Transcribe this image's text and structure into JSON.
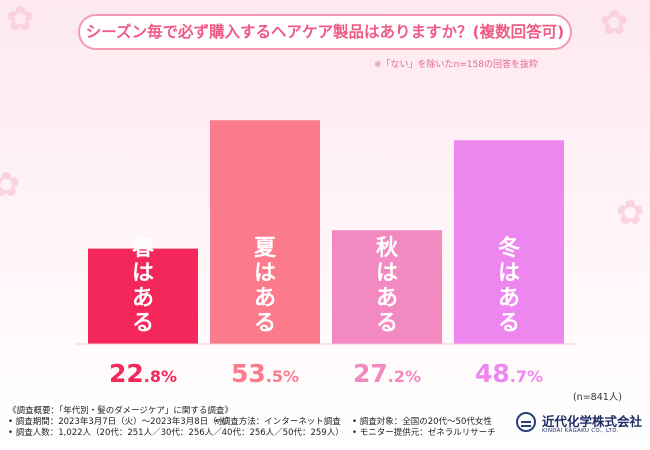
{
  "chart_data": {
    "type": "bar",
    "title": "シーズン毎で必ず購入するヘアケア製品はありますか？(複数回答可)",
    "note": "※「ない」を除いたn=158の回答を抜粋",
    "categories": [
      "春はある",
      "夏はある",
      "秋はある",
      "冬はある"
    ],
    "values": [
      22.8,
      53.5,
      27.2,
      48.7
    ],
    "value_labels": [
      "22.8%",
      "53.5%",
      "27.2%",
      "48.7%"
    ],
    "colors": [
      "#f4275a",
      "#fb7b8c",
      "#f389c1",
      "#ed86ee"
    ],
    "ylim": [
      0,
      60
    ],
    "unit": "%",
    "sample_size": "(n=841人)"
  },
  "footer": {
    "overview": "《調査概要：「年代別・髪のダメージケア」に関する調査》",
    "period": "• 調査期間：2023年3月7日（火）～2023年3月8日（水）",
    "method": "• 調査方法：インターネット調査",
    "target": "• 調査対象：全国の20代～50代女性",
    "count": "• 調査人数：1,022人（20代：251人／30代：256人／40代：256人／50代：259人）",
    "monitor": "• モニター提供元：ゼネラルリサーチ"
  },
  "logo": {
    "name": "近代化学株式会社",
    "name_en": "KINDAI KAGAKU CO., LTD."
  }
}
